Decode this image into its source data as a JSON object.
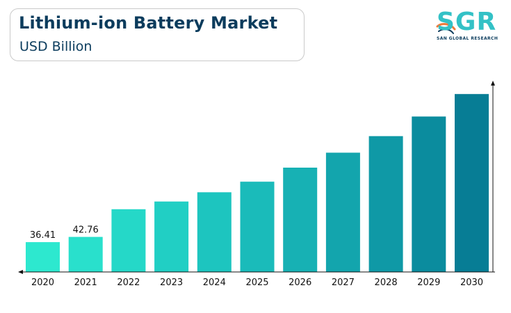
{
  "header": {
    "title": "Lithium-ion Battery Market",
    "subtitle": "USD Billion"
  },
  "logo": {
    "text": "SGR",
    "subtitle": "SAN GLOBAL RESEARCH",
    "colors": {
      "main": "#33c1c6",
      "accent": "#f07a3a",
      "dark": "#0b3c5d"
    }
  },
  "chart_data": {
    "type": "bar",
    "title": "Lithium-ion Battery Market",
    "subtitle": "USD Billion",
    "xlabel": "",
    "ylabel": "",
    "categories": [
      "2020",
      "2021",
      "2022",
      "2023",
      "2024",
      "2025",
      "2026",
      "2027",
      "2028",
      "2029",
      "2030"
    ],
    "values": [
      36.41,
      42.76,
      76.5,
      85.9,
      97.2,
      110.1,
      127.2,
      145.4,
      165.6,
      189.5,
      216.9
    ],
    "data_labels": [
      "36.41",
      "42.76",
      "",
      "",
      "",
      "",
      "",
      "",
      "",
      "",
      ""
    ],
    "ylim": [
      0,
      240
    ],
    "grid": false,
    "legend": "none",
    "colors": [
      "#2de8cf",
      "#29e0cc",
      "#25d8c8",
      "#21cfc4",
      "#1dc5bf",
      "#1abbba",
      "#17b1b4",
      "#13a5ad",
      "#0f99a6",
      "#0b8c9e",
      "#077d95"
    ]
  }
}
